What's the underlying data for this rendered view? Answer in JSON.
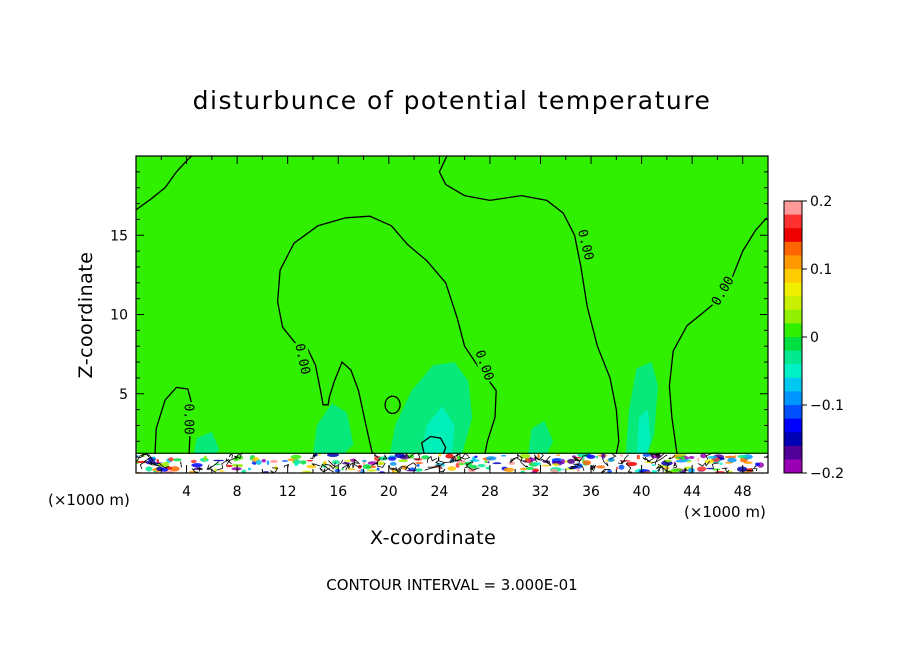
{
  "chart_data": {
    "type": "heatmap",
    "title": "disturbunce of potential temperature",
    "xlabel": "X-coordinate",
    "ylabel": "Z-coordinate",
    "x_unit_label": "(×1000 m)",
    "xlim": [
      0,
      50
    ],
    "ylim": [
      0,
      20
    ],
    "x_ticks": [
      4,
      8,
      12,
      16,
      20,
      24,
      28,
      32,
      36,
      40,
      44,
      48
    ],
    "y_ticks": [
      5,
      10,
      15
    ],
    "colorbar": {
      "range": [
        -0.2,
        0.2
      ],
      "tick_values": [
        0.2,
        0.1,
        0,
        -0.1,
        -0.2
      ],
      "tick_labels": [
        "0.2",
        "0.1",
        "0",
        "−0.1",
        "−0.2"
      ],
      "colors": [
        "#ff9a9a",
        "#ff3030",
        "#ee0000",
        "#ff6600",
        "#ff9900",
        "#ffcc00",
        "#f0f000",
        "#c8f000",
        "#90f000",
        "#30f000",
        "#00e040",
        "#00e890",
        "#00f0c8",
        "#00c8f0",
        "#0096ff",
        "#0050ff",
        "#0000ff",
        "#0000b4",
        "#500096",
        "#9a00b4"
      ]
    },
    "background_level": 0.0,
    "contour_label": "0.00",
    "contour_interval_text": "CONTOUR INTERVAL = 3.000E-01"
  },
  "colors": {
    "field_zero": "#30f000",
    "field_slightly_negative": "#00e890",
    "field_negative": "#00f0c8"
  }
}
